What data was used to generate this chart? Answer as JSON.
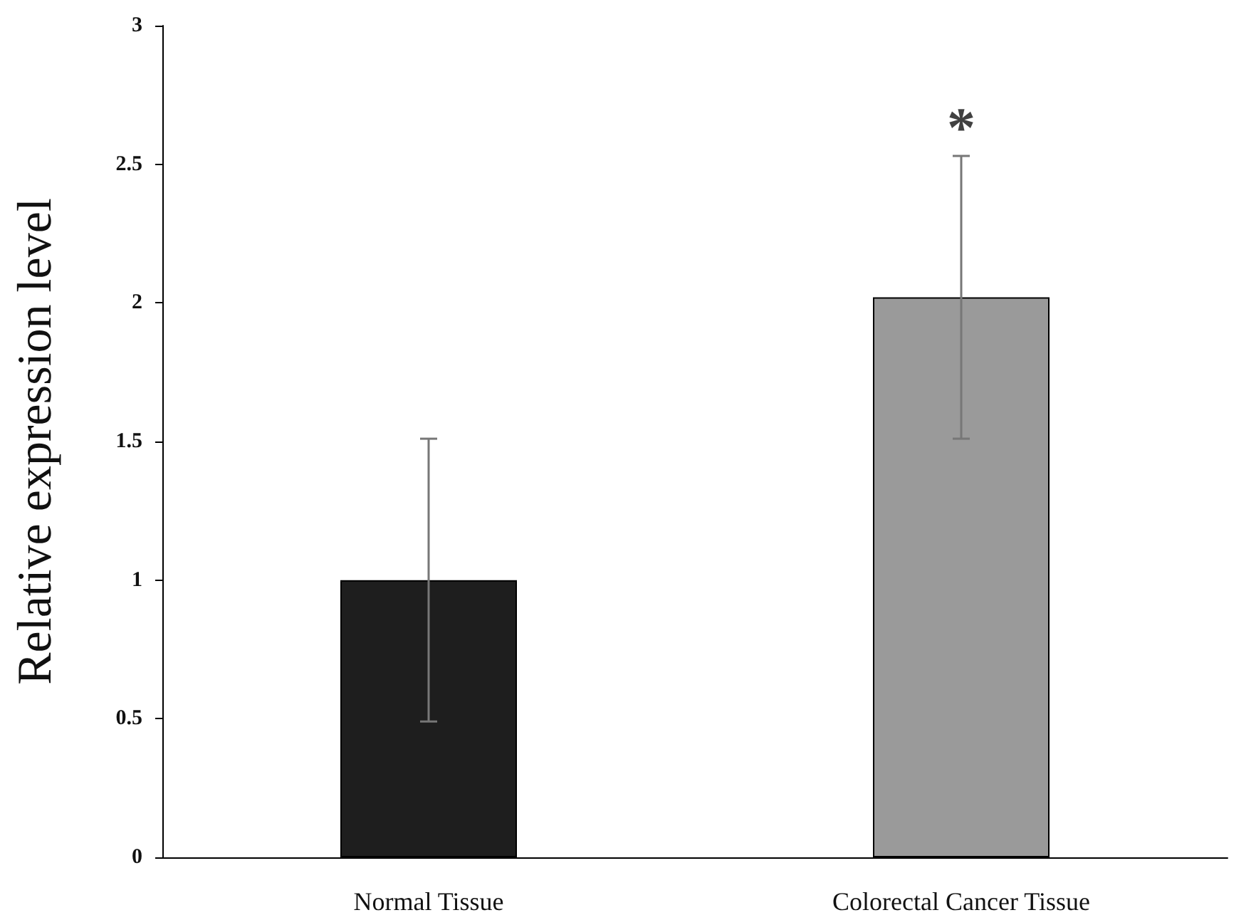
{
  "chart_data": {
    "type": "bar",
    "ylabel": "Relative expression level",
    "categories": [
      "Normal Tissue",
      "Colorectal Cancer Tissue"
    ],
    "values": [
      1.0,
      2.02
    ],
    "errors": [
      0.51,
      0.51
    ],
    "colors": [
      "#1e1e1e",
      "#9a9a9a"
    ],
    "ylim": [
      0,
      3
    ],
    "yticks": [
      0,
      0.5,
      1,
      1.5,
      2,
      2.5,
      3
    ],
    "annotations": [
      "*"
    ],
    "grid": false
  }
}
